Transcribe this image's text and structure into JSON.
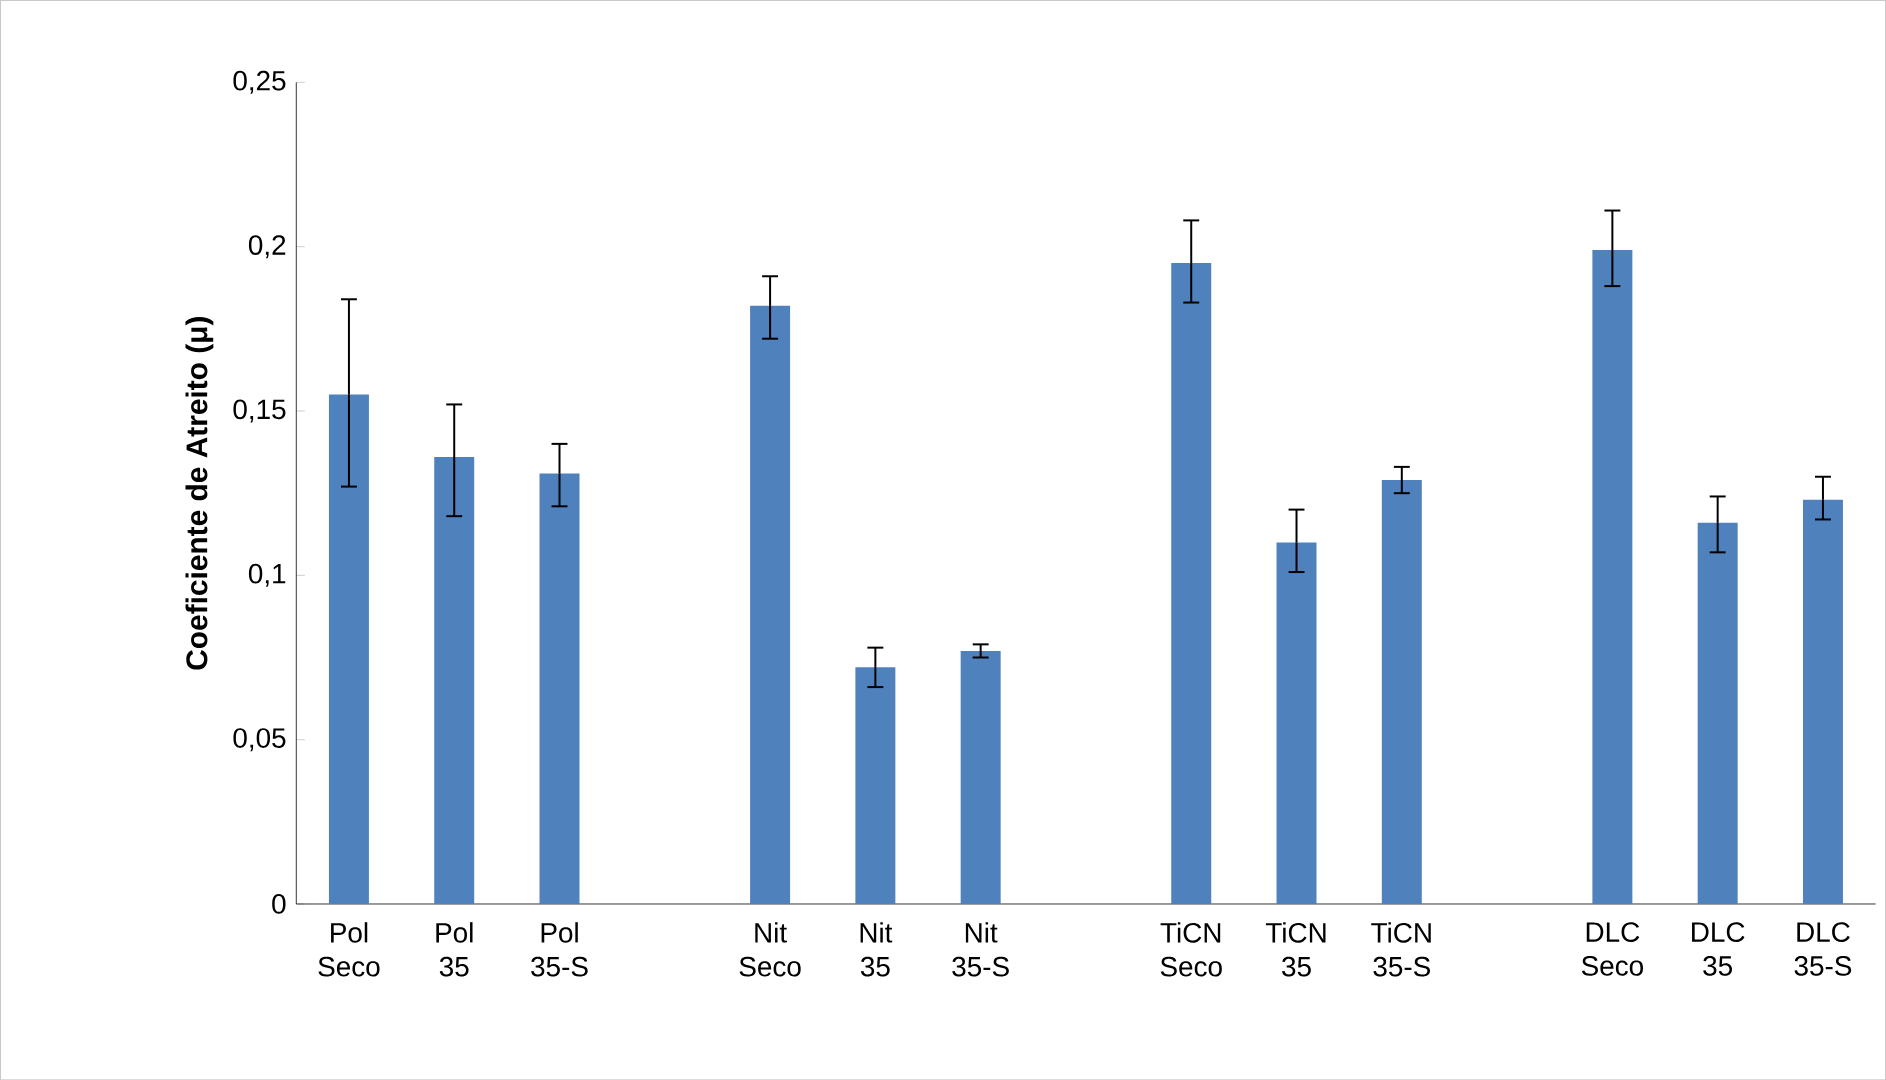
{
  "chart_data": {
    "type": "bar",
    "ylabel": "Coeficiente de Atreito (μ)",
    "categories": [
      "Pol Seco",
      "Pol 35",
      "Pol 35-S",
      null,
      "Nit Seco",
      "Nit 35",
      "Nit 35-S",
      null,
      "TiCN Seco",
      "TiCN 35",
      "TiCN 35-S",
      null,
      "DLC Seco",
      "DLC 35",
      "DLC 35-S"
    ],
    "values": [
      0.155,
      0.136,
      0.131,
      null,
      0.182,
      0.072,
      0.077,
      null,
      0.195,
      0.11,
      0.129,
      null,
      0.199,
      0.116,
      0.123
    ],
    "errors": [
      [
        0.127,
        0.184
      ],
      [
        0.118,
        0.152
      ],
      [
        0.121,
        0.14
      ],
      null,
      [
        0.172,
        0.191
      ],
      [
        0.066,
        0.078
      ],
      [
        0.075,
        0.079
      ],
      null,
      [
        0.183,
        0.208
      ],
      [
        0.101,
        0.12
      ],
      [
        0.125,
        0.133
      ],
      null,
      [
        0.188,
        0.211
      ],
      [
        0.107,
        0.124
      ],
      [
        0.117,
        0.13
      ]
    ],
    "color": "#4f81bd",
    "ylim": [
      0,
      0.25
    ],
    "yticks": [
      0,
      {
        "value": 0.05,
        "label": "0,05"
      },
      {
        "value": 0.1,
        "label": "0,1"
      },
      {
        "value": 0.15,
        "label": "0,15"
      },
      {
        "value": 0.2,
        "label": "0,2"
      },
      {
        "value": 0.25,
        "label": "0,25"
      }
    ],
    "grid": false
  }
}
